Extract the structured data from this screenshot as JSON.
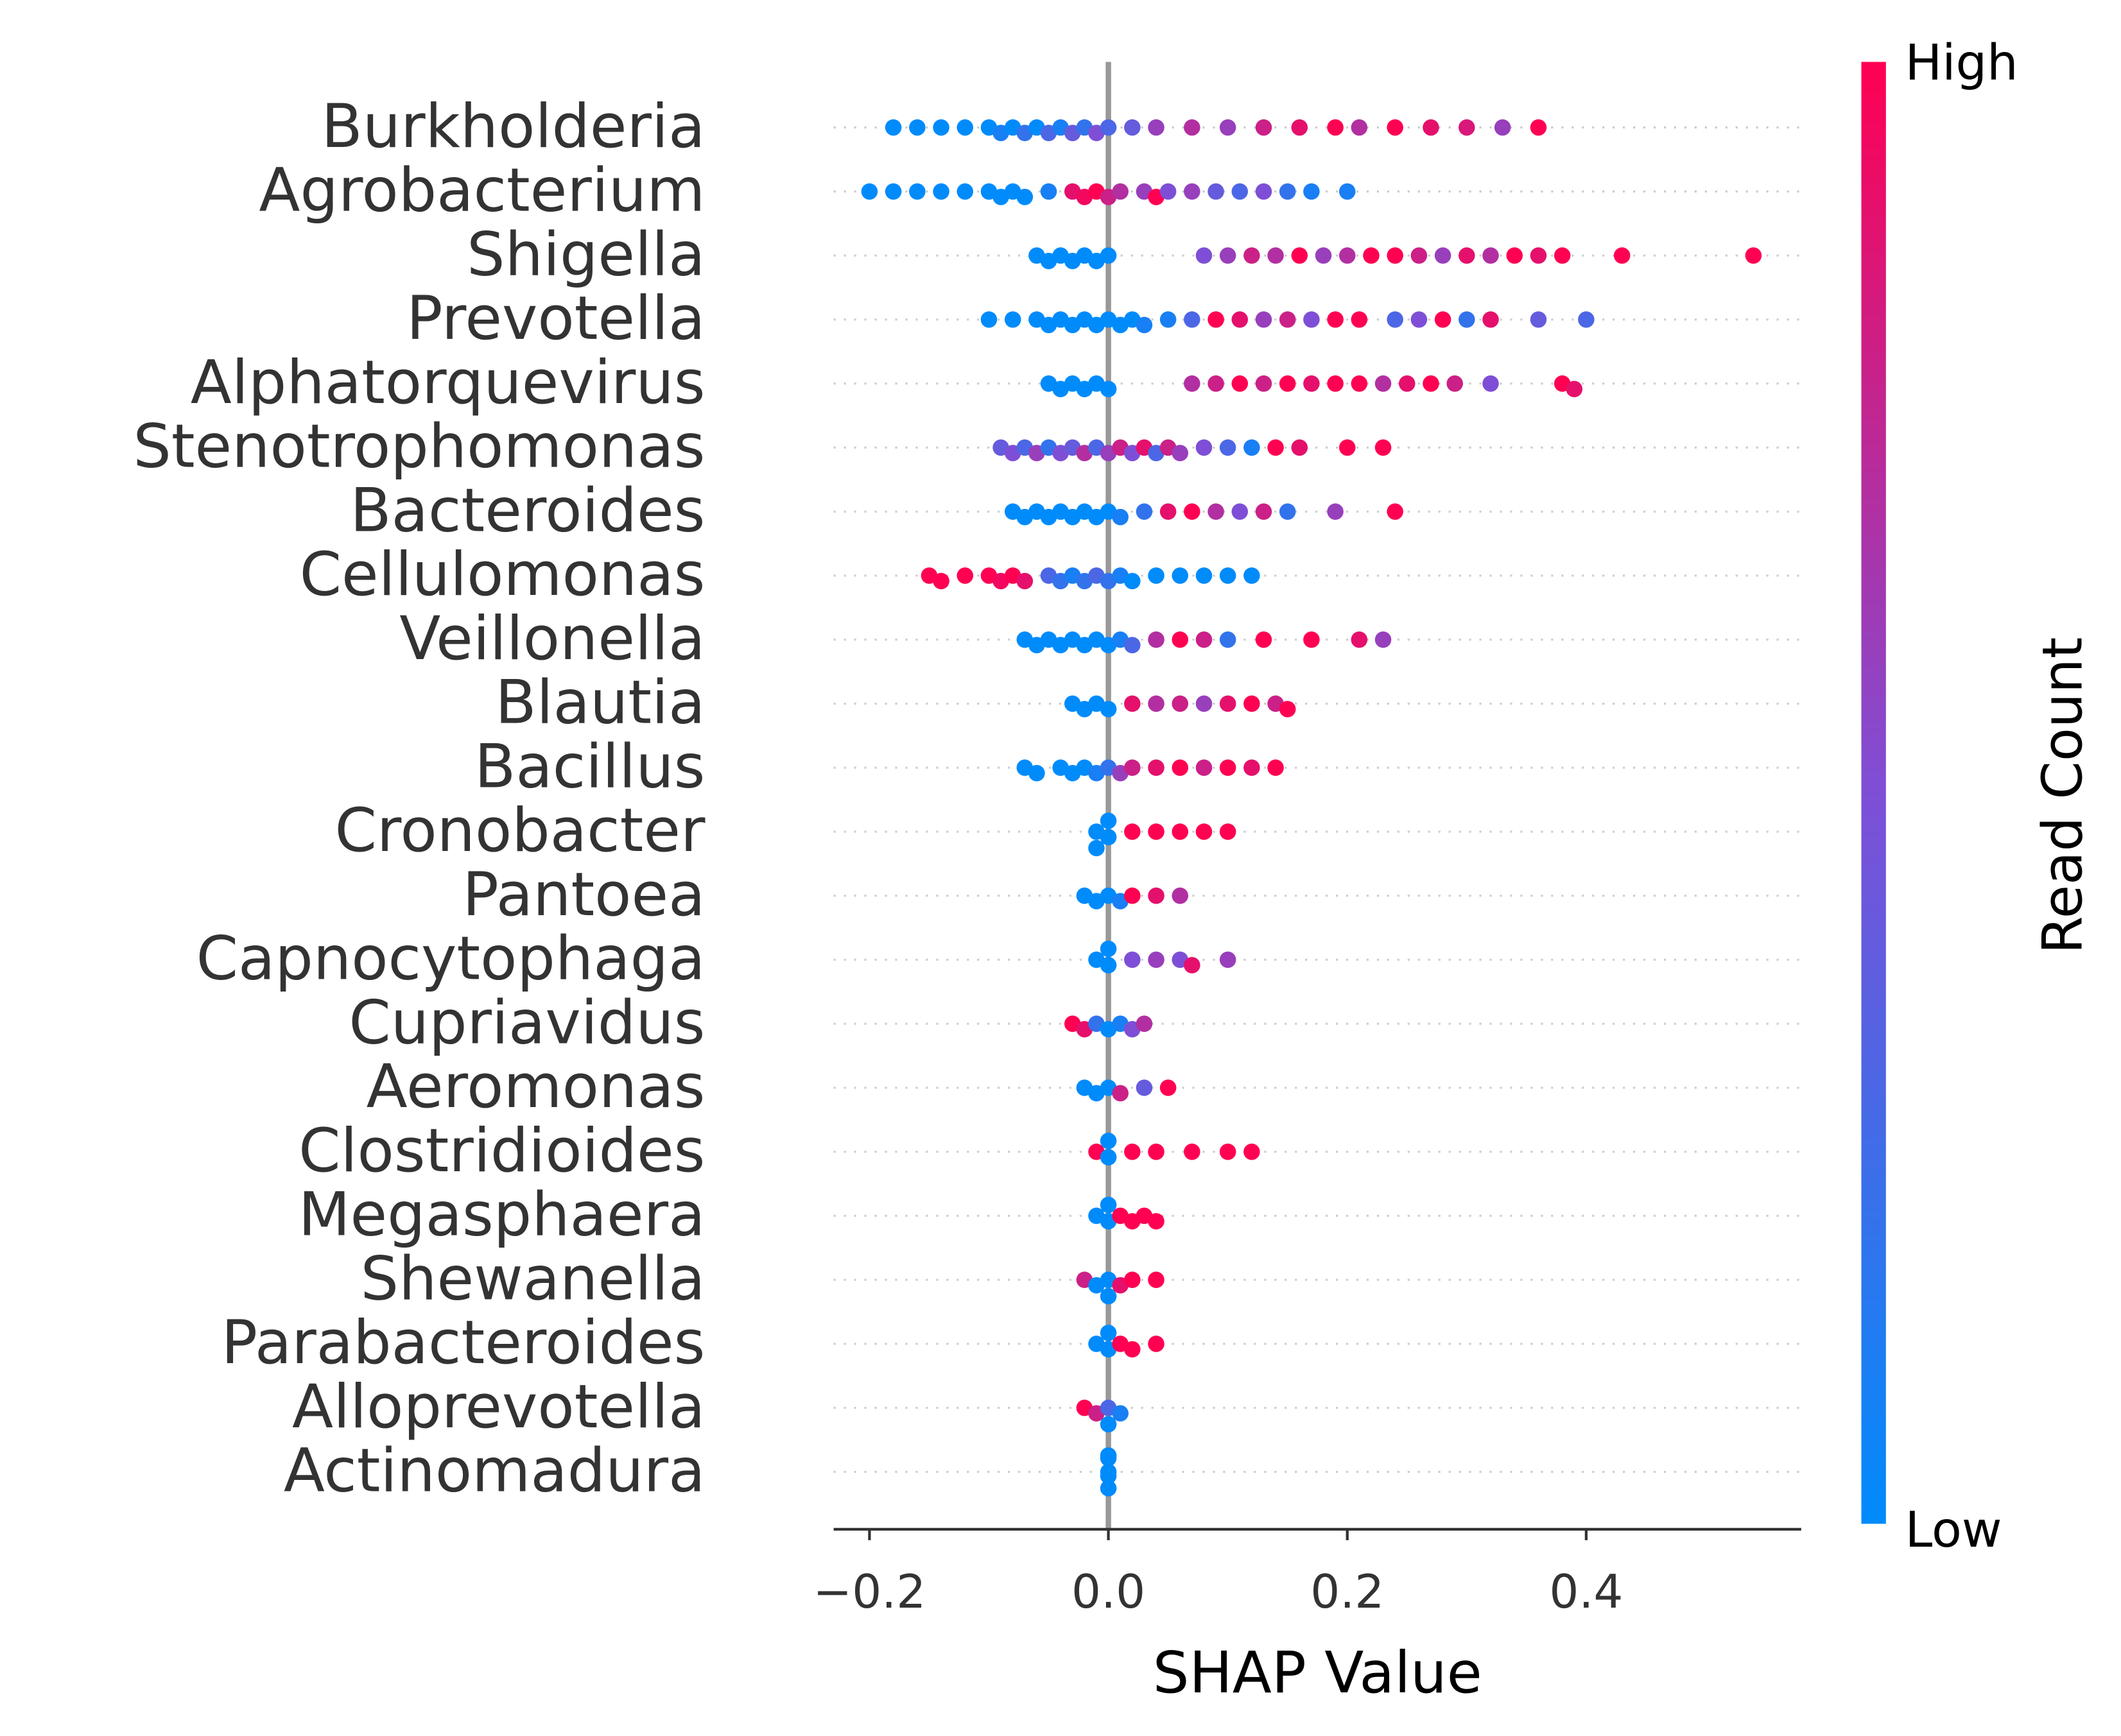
{
  "chart_data": {
    "type": "beeswarm",
    "x_label": "SHAP Value",
    "colorbar_label": "Read Count",
    "colorbar_high": "High",
    "colorbar_low": "Low",
    "colormap": [
      "#008bfb",
      "#7e4fd6",
      "#ff0052"
    ],
    "xlim": [
      -0.23,
      0.58
    ],
    "xticks": [
      {
        "value": -0.2,
        "label": "−0.2"
      },
      {
        "value": 0,
        "label": "0.0"
      },
      {
        "value": 0.2,
        "label": "0.2"
      },
      {
        "value": 0.4,
        "label": "0.4"
      }
    ],
    "series": [
      {
        "name": "Burkholderia",
        "values": [
          -0.18,
          -0.16,
          -0.14,
          -0.12,
          -0.1,
          -0.09,
          -0.08,
          -0.07,
          -0.06,
          -0.05,
          -0.04,
          -0.03,
          -0.02,
          -0.01,
          0.0,
          0.02,
          0.04,
          0.07,
          0.1,
          0.13,
          0.16,
          0.19,
          0.21,
          0.24,
          0.27,
          0.3,
          0.33,
          0.36
        ],
        "levels": [
          0,
          0,
          0,
          0,
          0,
          0.1,
          0,
          0.2,
          0,
          0.3,
          0.1,
          0.4,
          0.2,
          0.5,
          0.3,
          0.4,
          0.6,
          0.7,
          0.6,
          0.8,
          0.9,
          1,
          0.7,
          1,
          0.9,
          0.85,
          0.6,
          1
        ]
      },
      {
        "name": "Agrobacterium",
        "values": [
          -0.2,
          -0.18,
          -0.16,
          -0.14,
          -0.12,
          -0.1,
          -0.09,
          -0.08,
          -0.07,
          -0.05,
          -0.03,
          -0.02,
          -0.01,
          0.0,
          0.01,
          0.03,
          0.04,
          0.05,
          0.07,
          0.09,
          0.11,
          0.13,
          0.15,
          0.17,
          0.2
        ],
        "levels": [
          0,
          0,
          0,
          0,
          0,
          0,
          0,
          0,
          0,
          0.1,
          0.9,
          0.95,
          1,
          0.8,
          0.7,
          0.6,
          1,
          0.5,
          0.6,
          0.4,
          0.3,
          0.5,
          0.2,
          0.1,
          0.1
        ]
      },
      {
        "name": "Shigella",
        "values": [
          -0.06,
          -0.05,
          -0.04,
          -0.03,
          -0.02,
          -0.01,
          0.0,
          0.08,
          0.1,
          0.12,
          0.14,
          0.16,
          0.18,
          0.2,
          0.22,
          0.24,
          0.26,
          0.28,
          0.3,
          0.32,
          0.34,
          0.36,
          0.38,
          0.43,
          0.54
        ],
        "levels": [
          0,
          0,
          0,
          0,
          0,
          0,
          0,
          0.5,
          0.6,
          0.8,
          0.7,
          1,
          0.6,
          0.7,
          1,
          1,
          0.8,
          0.6,
          0.9,
          0.7,
          1,
          0.9,
          1,
          1,
          1
        ]
      },
      {
        "name": "Prevotella",
        "values": [
          -0.1,
          -0.08,
          -0.06,
          -0.05,
          -0.04,
          -0.03,
          -0.02,
          -0.01,
          0.0,
          0.01,
          0.02,
          0.03,
          0.05,
          0.07,
          0.09,
          0.11,
          0.13,
          0.15,
          0.17,
          0.19,
          0.21,
          0.24,
          0.26,
          0.28,
          0.3,
          0.32,
          0.36,
          0.4
        ],
        "levels": [
          0,
          0,
          0,
          0,
          0,
          0,
          0,
          0,
          0,
          0,
          0,
          0.1,
          0.1,
          0.3,
          1,
          0.9,
          0.6,
          0.8,
          0.5,
          1,
          1,
          0.3,
          0.5,
          1,
          0.2,
          0.9,
          0.4,
          0.3
        ]
      },
      {
        "name": "Alphatorquevirus",
        "values": [
          -0.05,
          -0.04,
          -0.03,
          -0.02,
          -0.01,
          0.0,
          0.07,
          0.09,
          0.11,
          0.13,
          0.15,
          0.17,
          0.19,
          0.21,
          0.23,
          0.25,
          0.27,
          0.29,
          0.32,
          0.38,
          0.39
        ],
        "levels": [
          0,
          0,
          0,
          0,
          0,
          0,
          0.7,
          0.8,
          1,
          0.8,
          1,
          0.9,
          1,
          1,
          0.7,
          0.9,
          1,
          0.8,
          0.5,
          1,
          0.9
        ]
      },
      {
        "name": "Stenotrophomonas",
        "values": [
          -0.09,
          -0.08,
          -0.07,
          -0.06,
          -0.05,
          -0.04,
          -0.03,
          -0.02,
          -0.01,
          0.0,
          0.01,
          0.02,
          0.03,
          0.04,
          0.05,
          0.06,
          0.08,
          0.1,
          0.12,
          0.14,
          0.16,
          0.2,
          0.23
        ],
        "levels": [
          0.4,
          0.5,
          0.3,
          0.6,
          0.2,
          0.5,
          0.4,
          0.7,
          0.3,
          0.6,
          0.8,
          0.5,
          0.9,
          0.3,
          0.8,
          0.6,
          0.5,
          0.3,
          0.1,
          1,
          0.9,
          1,
          1
        ]
      },
      {
        "name": "Bacteroides",
        "values": [
          -0.08,
          -0.07,
          -0.06,
          -0.05,
          -0.04,
          -0.03,
          -0.02,
          -0.01,
          0.0,
          0.01,
          0.03,
          0.05,
          0.07,
          0.09,
          0.11,
          0.13,
          0.15,
          0.19,
          0.24
        ],
        "levels": [
          0,
          0,
          0,
          0,
          0,
          0,
          0,
          0,
          0,
          0.1,
          0.2,
          0.9,
          1,
          0.7,
          0.5,
          0.8,
          0.2,
          0.6,
          1
        ]
      },
      {
        "name": "Cellulomonas",
        "values": [
          -0.15,
          -0.14,
          -0.12,
          -0.1,
          -0.09,
          -0.08,
          -0.07,
          -0.05,
          -0.04,
          -0.03,
          -0.02,
          -0.01,
          0.0,
          0.01,
          0.02,
          0.04,
          0.06,
          0.08,
          0.1,
          0.12
        ],
        "levels": [
          1,
          1,
          1,
          1,
          0.95,
          1,
          0.9,
          0.3,
          0.2,
          0.1,
          0.2,
          0.3,
          0.2,
          0.1,
          0,
          0,
          0,
          0,
          0,
          0
        ]
      },
      {
        "name": "Veillonella",
        "values": [
          -0.07,
          -0.06,
          -0.05,
          -0.04,
          -0.03,
          -0.02,
          -0.01,
          0.0,
          0.01,
          0.02,
          0.04,
          0.06,
          0.08,
          0.1,
          0.13,
          0.17,
          0.21,
          0.23
        ],
        "levels": [
          0,
          0,
          0,
          0,
          0,
          0,
          0,
          0,
          0.1,
          0.3,
          0.7,
          1,
          0.8,
          0.2,
          1,
          1,
          0.9,
          0.6
        ]
      },
      {
        "name": "Blautia",
        "values": [
          -0.03,
          -0.02,
          -0.01,
          0.0,
          0.02,
          0.04,
          0.06,
          0.08,
          0.1,
          0.12,
          0.14,
          0.15
        ],
        "levels": [
          0,
          0,
          0,
          0,
          0.9,
          0.7,
          0.8,
          0.6,
          0.9,
          1,
          0.8,
          1
        ]
      },
      {
        "name": "Bacillus",
        "values": [
          -0.07,
          -0.06,
          -0.04,
          -0.03,
          -0.02,
          -0.01,
          0.0,
          0.01,
          0.02,
          0.04,
          0.06,
          0.08,
          0.1,
          0.12,
          0.14
        ],
        "levels": [
          0,
          0,
          0,
          0,
          0,
          0.1,
          0.2,
          0.6,
          0.8,
          0.9,
          1,
          0.8,
          1,
          0.9,
          1
        ]
      },
      {
        "name": "Cronobacter",
        "values": [
          -0.01,
          -0.01,
          0.0,
          0.0,
          0.02,
          0.04,
          0.06,
          0.08,
          0.1
        ],
        "levels": [
          0,
          0,
          0,
          0,
          1,
          1,
          1,
          1,
          1
        ]
      },
      {
        "name": "Pantoea",
        "values": [
          -0.02,
          -0.01,
          0.0,
          0.01,
          0.02,
          0.04,
          0.06
        ],
        "levels": [
          0,
          0,
          0,
          0.1,
          1,
          0.9,
          0.7
        ]
      },
      {
        "name": "Capnocytophaga",
        "values": [
          -0.01,
          0.0,
          0.0,
          0.02,
          0.04,
          0.06,
          0.07,
          0.1
        ],
        "levels": [
          0,
          0,
          0,
          0.5,
          0.6,
          0.5,
          0.9,
          0.6
        ]
      },
      {
        "name": "Cupriavidus",
        "values": [
          -0.03,
          -0.02,
          -0.01,
          0.0,
          0.01,
          0.02,
          0.03
        ],
        "levels": [
          1,
          0.9,
          0.2,
          0,
          0.1,
          0.5,
          0.7
        ]
      },
      {
        "name": "Aeromonas",
        "values": [
          -0.02,
          -0.01,
          0.0,
          0.01,
          0.03,
          0.05
        ],
        "levels": [
          0,
          0,
          0,
          0.8,
          0.4,
          1
        ]
      },
      {
        "name": "Clostridioides",
        "values": [
          -0.01,
          0.0,
          0.0,
          0.02,
          0.04,
          0.07,
          0.1,
          0.12
        ],
        "levels": [
          1,
          0,
          0,
          1,
          1,
          1,
          1,
          1
        ]
      },
      {
        "name": "Megasphaera",
        "values": [
          -0.01,
          0.0,
          0.0,
          0.01,
          0.02,
          0.03,
          0.04
        ],
        "levels": [
          0,
          0,
          0,
          1,
          1,
          1,
          1
        ]
      },
      {
        "name": "Shewanella",
        "values": [
          -0.02,
          -0.01,
          0.0,
          0.0,
          0.01,
          0.02,
          0.04
        ],
        "levels": [
          0.8,
          0,
          0,
          0,
          0.9,
          1,
          1
        ]
      },
      {
        "name": "Parabacteroides",
        "values": [
          -0.01,
          0.0,
          0.0,
          0.01,
          0.02,
          0.04
        ],
        "levels": [
          0,
          0,
          0,
          1,
          1,
          1
        ]
      },
      {
        "name": "Alloprevotella",
        "values": [
          -0.02,
          -0.01,
          0.0,
          0.0,
          0.01
        ],
        "levels": [
          1,
          0.8,
          0.3,
          0,
          0.1
        ]
      },
      {
        "name": "Actinomadura",
        "values": [
          0,
          0,
          0,
          0,
          0
        ],
        "levels": [
          0,
          0,
          0,
          0,
          0
        ]
      }
    ]
  }
}
